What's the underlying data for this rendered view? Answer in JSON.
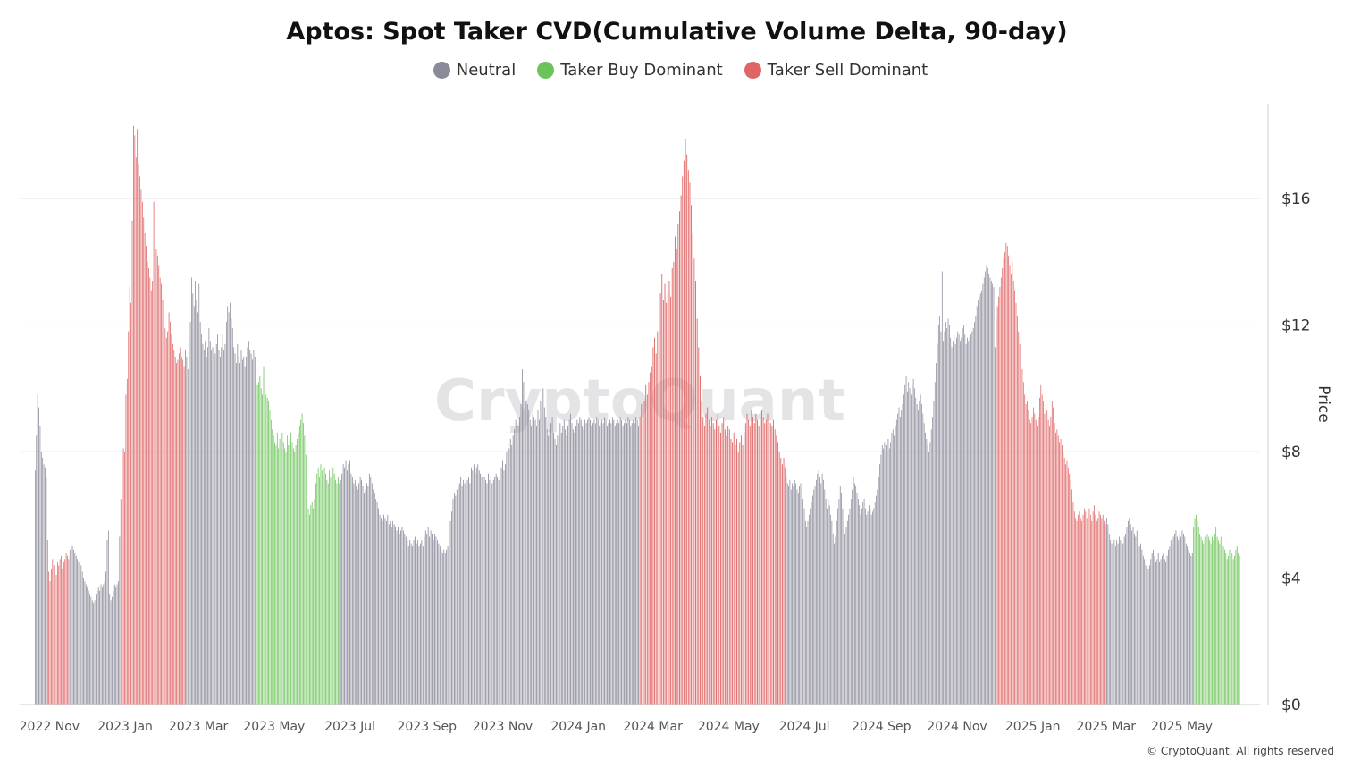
{
  "chart_data": {
    "type": "bar",
    "title": "Aptos: Spot Taker CVD(Cumulative Volume Delta, 90-day)",
    "ylabel": "Price",
    "ylim": [
      0,
      19
    ],
    "yticks": [
      0,
      4,
      8,
      12,
      16
    ],
    "ytick_labels": [
      "$0",
      "$4",
      "$8",
      "$12",
      "$16"
    ],
    "xtick_labels": [
      "2022 Nov",
      "2023 Jan",
      "2023 Mar",
      "2023 May",
      "2023 Jul",
      "2023 Sep",
      "2023 Nov",
      "2024 Jan",
      "2024 Mar",
      "2024 May",
      "2024 Jul",
      "2024 Sep",
      "2024 Nov",
      "2025 Jan",
      "2025 Mar",
      "2025 May"
    ],
    "legend": [
      {
        "name": "Neutral",
        "color": "#8a8a99"
      },
      {
        "name": "Taker Buy Dominant",
        "color": "#6cc35a"
      },
      {
        "name": "Taker Sell Dominant",
        "color": "#e06666"
      }
    ],
    "grid": true,
    "legend_position": "top-center",
    "segments": [
      {
        "start": "2022-10-20",
        "end": "2022-10-29",
        "category": "Neutral",
        "values": [
          7.4,
          8.5,
          9.8,
          9.4,
          8.8,
          8.0,
          7.8,
          7.6,
          7.5,
          7.2
        ]
      },
      {
        "start": "2022-10-30",
        "end": "2022-11-16",
        "category": "Taker Sell Dominant",
        "values": [
          5.2,
          4.2,
          3.9,
          4.3,
          4.6,
          4.4,
          4.0,
          4.1,
          4.5,
          4.4,
          4.6,
          4.7,
          4.3,
          4.5,
          4.6,
          4.8,
          4.7,
          4.6
        ]
      },
      {
        "start": "2022-11-17",
        "end": "2022-12-27",
        "category": "Neutral",
        "values": [
          4.9,
          5.1,
          5.0,
          4.9,
          4.8,
          4.7,
          4.6,
          4.5,
          4.6,
          4.4,
          4.2,
          4.0,
          3.9,
          3.8,
          3.7,
          3.6,
          3.5,
          3.4,
          3.3,
          3.2,
          3.3,
          3.5,
          3.6,
          3.7,
          3.6,
          3.8,
          3.7,
          3.8,
          3.9,
          4.2,
          5.2,
          5.5,
          3.5,
          3.3,
          3.4,
          3.6,
          3.8,
          3.7,
          3.8,
          3.9,
          5.3
        ]
      },
      {
        "start": "2022-12-28",
        "end": "2023-02-17",
        "category": "Taker Sell Dominant",
        "values": [
          6.5,
          7.8,
          8.1,
          8.0,
          9.8,
          10.3,
          11.8,
          13.2,
          12.7,
          15.3,
          18.3,
          18.0,
          17.3,
          18.2,
          17.1,
          16.7,
          16.3,
          15.9,
          15.4,
          14.9,
          14.5,
          14.0,
          13.8,
          13.5,
          13.1,
          13.4,
          15.9,
          14.7,
          14.4,
          14.2,
          13.9,
          13.5,
          13.3,
          12.8,
          12.3,
          11.9,
          11.6,
          11.8,
          12.4,
          12.1,
          11.7,
          11.4,
          11.2,
          11.0,
          10.8,
          10.9,
          11.1,
          11.3,
          11.0,
          10.9,
          10.7
        ]
      },
      {
        "start": "2023-02-18",
        "end": "2023-04-15",
        "category": "Neutral",
        "values": [
          11.2,
          11.0,
          10.6,
          11.5,
          12.1,
          13.5,
          13.0,
          12.6,
          13.4,
          12.8,
          12.4,
          13.3,
          12.1,
          11.7,
          11.4,
          11.2,
          11.5,
          11.0,
          11.3,
          11.9,
          11.5,
          11.2,
          11.3,
          11.6,
          11.1,
          11.4,
          11.7,
          11.2,
          11.0,
          11.3,
          11.7,
          11.2,
          11.4,
          12.1,
          12.6,
          12.4,
          12.7,
          12.2,
          11.9,
          11.3,
          11.1,
          10.8,
          11.4,
          11.0,
          10.8,
          11.2,
          10.9,
          11.0,
          10.7,
          11.0,
          11.3,
          11.5,
          11.2,
          11.1,
          10.9,
          11.2,
          11.0
        ]
      },
      {
        "start": "2023-04-16",
        "end": "2023-06-22",
        "category": "Taker Buy Dominant",
        "values": [
          10.2,
          10.1,
          10.2,
          10.4,
          10.0,
          9.8,
          10.7,
          10.1,
          9.8,
          9.7,
          9.6,
          9.3,
          9.0,
          8.7,
          8.5,
          8.3,
          8.2,
          8.6,
          8.1,
          8.4,
          8.5,
          8.6,
          8.3,
          8.1,
          8.0,
          8.5,
          8.2,
          8.4,
          8.6,
          8.3,
          8.1,
          8.0,
          8.2,
          8.4,
          8.6,
          8.8,
          9.0,
          9.2,
          8.9,
          8.5,
          7.9,
          7.1,
          6.2,
          6.0,
          6.3,
          6.4,
          6.2,
          6.5,
          7.0,
          7.3,
          7.5,
          7.2,
          7.6,
          7.4,
          7.2,
          7.5,
          7.3,
          7.1,
          7.0,
          7.4,
          7.2,
          7.6,
          7.5,
          7.3,
          7.1,
          7.0,
          7.2,
          7.0
        ]
      },
      {
        "start": "2023-06-23",
        "end": "2024-02-18",
        "category": "Neutral",
        "values": [
          7.1,
          7.3,
          7.6,
          7.5,
          7.7,
          7.4,
          7.6,
          7.7,
          7.3,
          7.2,
          7.0,
          7.1,
          6.9,
          6.8,
          7.0,
          7.2,
          7.1,
          6.9,
          6.7,
          6.8,
          7.0,
          6.9,
          7.3,
          7.2,
          7.0,
          6.8,
          6.7,
          6.5,
          6.4,
          6.2,
          6.0,
          5.9,
          5.8,
          6.0,
          5.9,
          5.8,
          6.0,
          5.7,
          5.8,
          5.6,
          5.8,
          5.7,
          5.6,
          5.5,
          5.6,
          5.4,
          5.5,
          5.6,
          5.5,
          5.4,
          5.3,
          5.2,
          5.0,
          5.2,
          5.1,
          5.0,
          5.2,
          5.3,
          5.1,
          5.2,
          5.0,
          5.1,
          5.2,
          5.0,
          5.3,
          5.5,
          5.4,
          5.6,
          5.3,
          5.5,
          5.4,
          5.2,
          5.4,
          5.3,
          5.2,
          5.1,
          5.0,
          4.9,
          4.8,
          4.9,
          4.8,
          4.9,
          5.0,
          5.4,
          5.8,
          6.1,
          6.5,
          6.7,
          6.6,
          6.8,
          6.9,
          7.0,
          7.2,
          6.9,
          7.1,
          7.0,
          7.3,
          7.1,
          7.2,
          7.0,
          7.5,
          7.4,
          7.6,
          7.3,
          7.5,
          7.6,
          7.4,
          7.3,
          7.2,
          7.0,
          7.2,
          7.1,
          7.0,
          7.3,
          7.1,
          7.2,
          7.0,
          7.1,
          7.2,
          7.3,
          7.2,
          7.1,
          7.3,
          7.5,
          7.7,
          7.4,
          7.6,
          8.0,
          8.3,
          8.1,
          8.4,
          8.2,
          8.5,
          8.7,
          9.0,
          9.2,
          8.8,
          9.1,
          9.5,
          10.6,
          10.2,
          9.8,
          9.6,
          9.5,
          9.3,
          9.0,
          8.8,
          9.2,
          9.1,
          9.0,
          8.8,
          9.3,
          9.0,
          9.6,
          9.8,
          10.0,
          9.4,
          9.1,
          8.7,
          8.5,
          8.7,
          8.9,
          9.1,
          8.6,
          8.4,
          8.2,
          8.5,
          8.7,
          8.9,
          8.6,
          8.8,
          9.0,
          8.7,
          8.5,
          8.8,
          9.0,
          9.2,
          8.9,
          8.7,
          8.6,
          8.8,
          9.0,
          8.9,
          9.1,
          9.0,
          8.8,
          8.7,
          9.0,
          8.9,
          9.0,
          9.1,
          9.0,
          8.8,
          8.9,
          9.0,
          8.9,
          9.1,
          9.0,
          8.8,
          8.9,
          9.0,
          8.9,
          9.1,
          9.0,
          8.8,
          8.9,
          9.0,
          8.9,
          9.1,
          9.0,
          8.8,
          8.9,
          9.0,
          8.9,
          9.1,
          9.0,
          8.8,
          8.9,
          9.0,
          8.9,
          9.1,
          9.0,
          8.8,
          8.9,
          9.0,
          8.9,
          9.1,
          9.0,
          8.8
        ]
      },
      {
        "start": "2024-02-19",
        "end": "2024-06-14",
        "category": "Taker Sell Dominant",
        "values": [
          9.1,
          9.5,
          9.2,
          9.6,
          10.1,
          9.8,
          10.2,
          10.5,
          10.7,
          11.3,
          11.6,
          11.1,
          11.8,
          12.2,
          13.0,
          13.6,
          12.8,
          13.3,
          12.7,
          13.1,
          13.4,
          12.9,
          13.8,
          14.0,
          14.8,
          14.4,
          15.2,
          15.6,
          16.1,
          16.7,
          17.2,
          17.9,
          17.4,
          16.9,
          16.5,
          15.8,
          14.9,
          14.1,
          13.4,
          12.2,
          11.3,
          10.4,
          9.6,
          9.1,
          8.8,
          9.2,
          9.4,
          9.0,
          8.8,
          9.1,
          8.9,
          8.7,
          9.0,
          9.2,
          8.8,
          8.6,
          8.9,
          9.1,
          8.7,
          8.5,
          8.8,
          8.7,
          8.4,
          8.3,
          8.6,
          8.2,
          8.4,
          8.0,
          8.3,
          8.5,
          8.2,
          8.6,
          8.9,
          9.2,
          9.0,
          8.8,
          9.3,
          9.1,
          8.9,
          9.2,
          9.0,
          8.8,
          9.1,
          9.3,
          9.1,
          8.9,
          9.0,
          9.2,
          9.0,
          8.9,
          8.8,
          9.0,
          8.7,
          8.5,
          8.3,
          8.0,
          7.8,
          7.6,
          7.8
        ]
      },
      {
        "start": "2024-06-15",
        "end": "2024-11-30",
        "category": "Neutral",
        "values": [
          7.5,
          7.2,
          7.0,
          6.9,
          7.1,
          6.8,
          7.0,
          6.9,
          7.1,
          7.0,
          6.8,
          6.7,
          6.9,
          7.0,
          6.8,
          6.5,
          6.2,
          5.8,
          5.6,
          5.8,
          6.0,
          6.2,
          6.4,
          6.6,
          6.8,
          6.9,
          7.1,
          7.3,
          7.4,
          7.2,
          7.0,
          7.3,
          7.1,
          6.8,
          6.5,
          6.2,
          6.5,
          6.3,
          6.0,
          5.8,
          5.4,
          5.1,
          5.3,
          5.8,
          6.2,
          6.5,
          6.9,
          6.7,
          6.2,
          5.8,
          5.4,
          5.6,
          5.8,
          6.0,
          6.2,
          6.5,
          6.8,
          7.2,
          7.0,
          6.9,
          6.7,
          6.5,
          6.3,
          6.0,
          6.2,
          6.4,
          6.5,
          6.2,
          6.0,
          6.1,
          6.3,
          6.2,
          6.0,
          6.1,
          6.2,
          6.4,
          6.6,
          6.8,
          7.2,
          7.6,
          7.9,
          8.2,
          8.1,
          8.3,
          8.0,
          8.2,
          8.4,
          8.1,
          8.3,
          8.6,
          8.7,
          8.5,
          8.8,
          9.0,
          9.2,
          9.4,
          9.1,
          9.3,
          9.5,
          9.8,
          10.1,
          10.4,
          9.9,
          10.2,
          10.0,
          9.8,
          10.1,
          10.3,
          10.0,
          9.7,
          9.5,
          9.3,
          9.6,
          9.8,
          9.5,
          9.2,
          8.9,
          8.6,
          8.4,
          8.2,
          8.0,
          8.3,
          8.7,
          9.1,
          9.6,
          10.2,
          10.8,
          11.4,
          12.0,
          12.3,
          11.8,
          13.7,
          11.5,
          11.8,
          12.1,
          11.9,
          12.2,
          12.0,
          11.6,
          11.3,
          11.5,
          11.7,
          11.4,
          11.6,
          11.8,
          11.7,
          11.5,
          11.6,
          11.9,
          12.0,
          11.7,
          11.4,
          11.6,
          11.5,
          11.6,
          11.7,
          11.8,
          11.9,
          12.1,
          12.3,
          12.6,
          12.8,
          12.9,
          13.0,
          13.1,
          13.3,
          13.5,
          13.7,
          13.9,
          13.8,
          13.6,
          13.5,
          13.4,
          13.3,
          13.2
        ]
      },
      {
        "start": "2024-12-01",
        "end": "2025-02-28",
        "category": "Taker Sell Dominant",
        "values": [
          11.3,
          12.2,
          12.6,
          12.9,
          13.2,
          13.5,
          13.8,
          14.1,
          14.3,
          14.6,
          14.5,
          14.2,
          13.9,
          13.6,
          14.0,
          13.4,
          13.1,
          12.7,
          12.3,
          11.8,
          11.4,
          10.9,
          10.6,
          10.2,
          9.8,
          9.5,
          9.6,
          9.3,
          9.0,
          8.9,
          9.1,
          9.4,
          9.2,
          9.0,
          8.8,
          9.1,
          9.7,
          10.1,
          9.8,
          9.6,
          9.2,
          9.5,
          9.3,
          9.0,
          8.8,
          9.1,
          9.6,
          9.4,
          8.9,
          8.6,
          8.7,
          8.5,
          8.3,
          8.4,
          8.2,
          8.0,
          7.8,
          7.6,
          7.7,
          7.5,
          7.3,
          7.1,
          6.8,
          6.4,
          6.1,
          5.9,
          5.8,
          6.0,
          6.1,
          5.9,
          5.8,
          6.0,
          6.2,
          6.1,
          5.9,
          6.0,
          6.2,
          6.0,
          5.8,
          6.1,
          6.3,
          6.0,
          5.8,
          5.9,
          6.1,
          6.0,
          5.9,
          6.0,
          5.8,
          5.7
        ]
      },
      {
        "start": "2025-03-01",
        "end": "2025-05-09",
        "category": "Neutral",
        "values": [
          5.9,
          5.7,
          5.4,
          5.2,
          5.1,
          5.3,
          5.2,
          5.0,
          5.2,
          5.1,
          5.3,
          5.2,
          5.0,
          5.1,
          5.3,
          5.4,
          5.6,
          5.8,
          5.9,
          5.7,
          5.5,
          5.6,
          5.4,
          5.3,
          5.5,
          5.2,
          5.0,
          5.1,
          4.9,
          4.7,
          4.6,
          4.4,
          4.5,
          4.3,
          4.4,
          4.6,
          4.8,
          4.9,
          4.7,
          4.5,
          4.6,
          4.8,
          4.5,
          4.6,
          4.7,
          4.8,
          4.6,
          4.5,
          4.7,
          4.9,
          5.0,
          5.2,
          5.1,
          5.3,
          5.4,
          5.5,
          5.3,
          5.2,
          5.4,
          5.3,
          5.5,
          5.4,
          5.3,
          5.1,
          5.0,
          4.9,
          4.8,
          4.7,
          4.8
        ]
      },
      {
        "start": "2025-05-10",
        "end": "2025-06-16",
        "category": "Taker Buy Dominant",
        "values": [
          5.6,
          5.9,
          6.0,
          5.8,
          5.6,
          5.4,
          5.3,
          5.2,
          5.1,
          5.3,
          5.2,
          5.4,
          5.3,
          5.2,
          5.1,
          5.3,
          5.2,
          5.4,
          5.6,
          5.3,
          5.2,
          5.1,
          5.3,
          5.2,
          5.0,
          4.9,
          4.8,
          4.6,
          4.7,
          4.9,
          4.7,
          4.8,
          4.6,
          4.7,
          4.9,
          5.0,
          4.8,
          4.7
        ]
      }
    ]
  },
  "watermark": "CryptoQuant",
  "footer": "© CryptoQuant. All rights reserved"
}
